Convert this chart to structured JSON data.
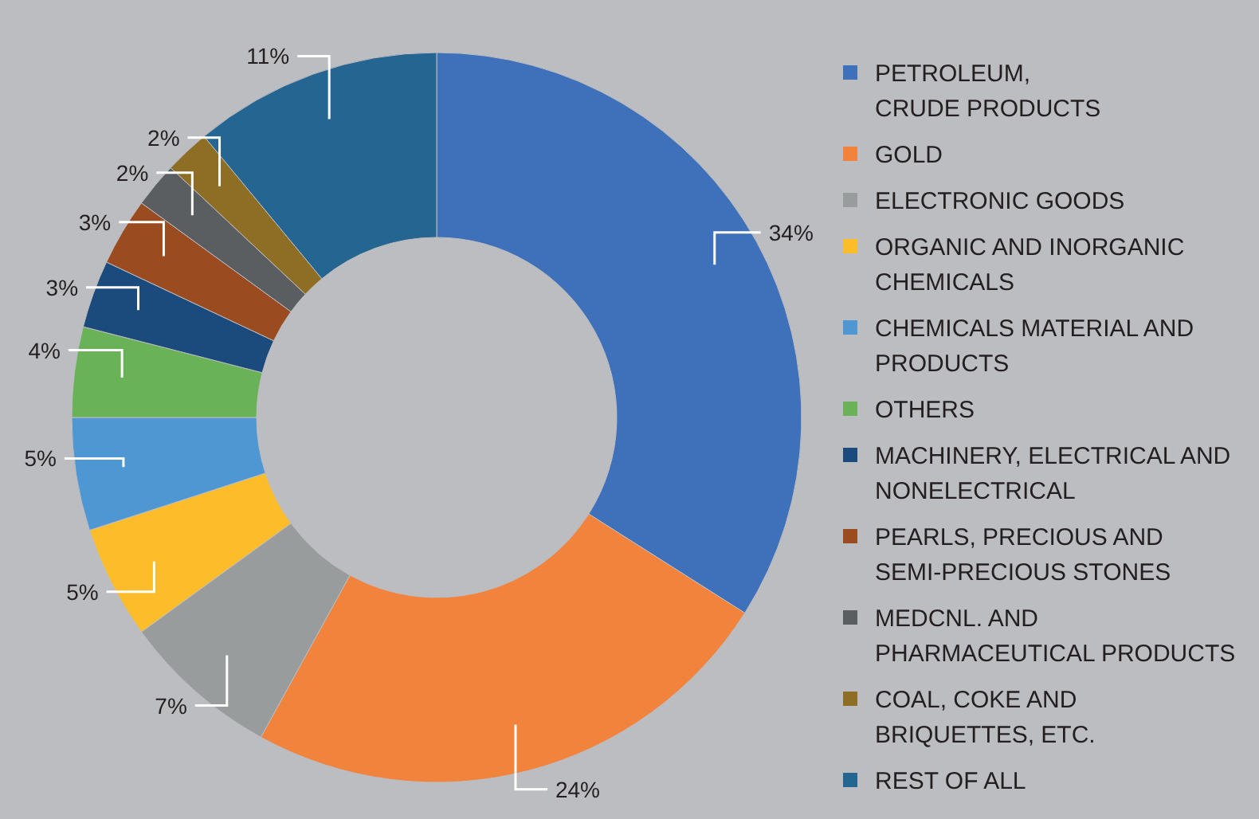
{
  "chart_data": {
    "type": "donut",
    "categories": [
      "PETROLEUM,\nCRUDE PRODUCTS",
      "GOLD",
      "ELECTRONIC GOODS",
      "ORGANIC AND INORGANIC\nCHEMICALS",
      "CHEMICALS MATERIAL AND\nPRODUCTS",
      "OTHERS",
      "MACHINERY, ELECTRICAL AND\nNONELECTRICAL",
      "PEARLS, PRECIOUS AND\nSEMI-PRECIOUS STONES",
      "MEDCNL. AND\nPHARMACEUTICAL PRODUCTS",
      "COAL, COKE AND\nBRIQUETTES, ETC.",
      "REST OF ALL"
    ],
    "values": [
      34,
      24,
      7,
      5,
      5,
      4,
      3,
      3,
      2,
      2,
      11
    ],
    "colors": [
      "#3f71bb",
      "#f2833c",
      "#999c9c",
      "#fdbd2a",
      "#4f97d3",
      "#6ab257",
      "#1b4a7c",
      "#9a4b20",
      "#5a5e60",
      "#8d6e24",
      "#256592"
    ],
    "value_labels": [
      "34%",
      "24%",
      "7%",
      "5%",
      "5%",
      "4%",
      "3%",
      "3%",
      "2%",
      "2%",
      "11%"
    ],
    "legend": "right"
  }
}
